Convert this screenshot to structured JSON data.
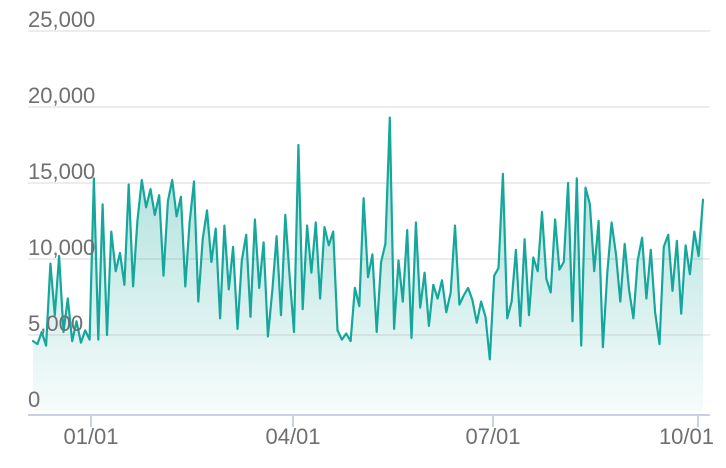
{
  "chart_data": {
    "type": "area",
    "title": "",
    "xlabel": "",
    "ylabel": "",
    "ylim": [
      0,
      25000
    ],
    "grid": true,
    "legend": false,
    "y_ticks": [
      {
        "label": "0",
        "value": 0
      },
      {
        "label": "5,000",
        "value": 5000
      },
      {
        "label": "10,000",
        "value": 10000
      },
      {
        "label": "15,000",
        "value": 15000
      },
      {
        "label": "20,000",
        "value": 20000
      },
      {
        "label": "25,000",
        "value": 25000
      }
    ],
    "x_ticks": [
      {
        "label": "01/01",
        "pos": 0.0866,
        "align": "middle"
      },
      {
        "label": "04/01",
        "pos": 0.3881,
        "align": "middle"
      },
      {
        "label": "07/01",
        "pos": 0.6866,
        "align": "middle"
      },
      {
        "label": "10/01",
        "pos": 0.9925,
        "align": "end"
      }
    ],
    "values": [
      4600,
      4400,
      5200,
      4300,
      9700,
      6300,
      10200,
      5200,
      7400,
      4600,
      5900,
      4500,
      5300,
      4700,
      15300,
      4700,
      13600,
      5000,
      11800,
      9200,
      10400,
      8300,
      14900,
      8200,
      12500,
      15200,
      13400,
      14600,
      12900,
      14200,
      8900,
      13800,
      15200,
      12800,
      14100,
      8200,
      12400,
      15100,
      7200,
      11300,
      13200,
      9800,
      12000,
      6100,
      12200,
      8000,
      10800,
      5400,
      9900,
      11600,
      6200,
      12600,
      8100,
      11100,
      4900,
      7900,
      11500,
      6300,
      12900,
      8800,
      5200,
      17500,
      6700,
      12200,
      9100,
      12400,
      7400,
      12100,
      10900,
      11800,
      5300,
      4700,
      5100,
      4600,
      8100,
      6900,
      14000,
      8800,
      10300,
      5200,
      9800,
      11000,
      19300,
      5400,
      9900,
      7200,
      11900,
      4800,
      12400,
      6800,
      9100,
      5600,
      8300,
      7400,
      8600,
      6500,
      7800,
      12200,
      7000,
      7600,
      8100,
      7300,
      5800,
      7200,
      6200,
      3400,
      8900,
      9400,
      15600,
      6100,
      7200,
      10600,
      5600,
      11300,
      6300,
      10100,
      9200,
      13100,
      8700,
      7800,
      12600,
      9300,
      9800,
      15000,
      5900,
      15300,
      4300,
      14700,
      13600,
      9200,
      12500,
      4200,
      9100,
      12400,
      10300,
      7200,
      11000,
      8000,
      6100,
      9900,
      11400,
      7400,
      10600,
      6500,
      4400,
      10800,
      11600,
      7900,
      11200,
      6400,
      10900,
      9000,
      11800,
      10200,
      13900
    ],
    "colors": {
      "line": "#16a79c",
      "fill_top": "rgba(22,167,156,0.50)",
      "fill_bottom": "rgba(22,167,156,0.04)",
      "gridline": "#ececec",
      "axis": "#c6d2e3",
      "label_text": "#6f6f6f"
    }
  }
}
